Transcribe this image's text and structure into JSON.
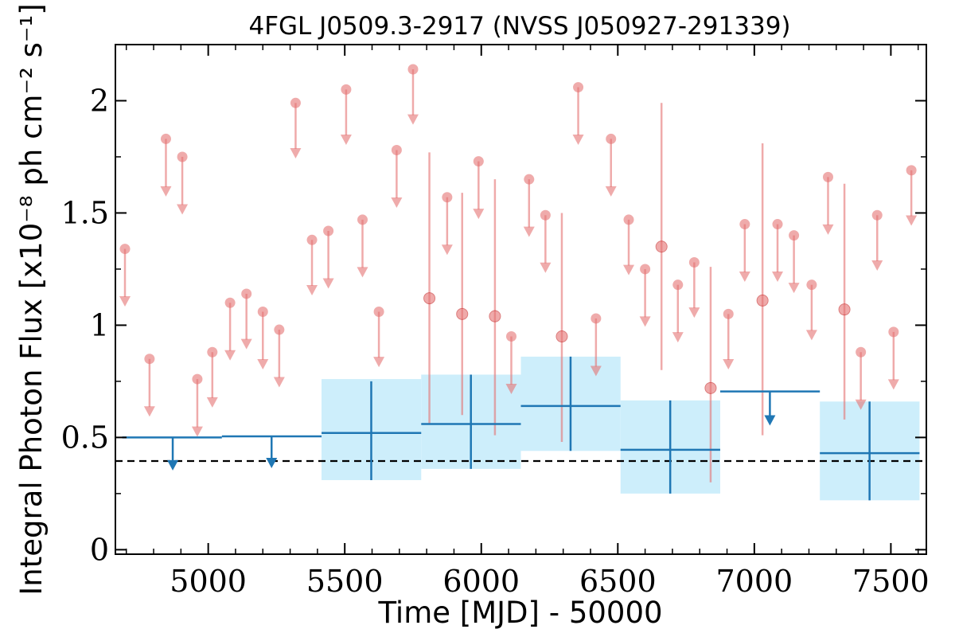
{
  "chart_data": {
    "type": "scatter",
    "title": "4FGL J0509.3-2917 (NVSS J050927-291339)",
    "xlabel": "Time [MJD] - 50000",
    "ylabel": "Integral Photon Flux [x10⁻⁸ ph cm⁻² s⁻¹]",
    "xlim": [
      4660,
      7630
    ],
    "ylim": [
      -0.02,
      2.25
    ],
    "x_ticks": [
      5000,
      5500,
      6000,
      6500,
      7000,
      7500
    ],
    "x_tick_labels": [
      "5000",
      "5500",
      "6000",
      "6500",
      "7000",
      "7500"
    ],
    "y_ticks": [
      0,
      0.5,
      1,
      1.5,
      2
    ],
    "y_tick_labels": [
      "0",
      "0.5",
      "1",
      "1.5",
      "2"
    ],
    "colors": {
      "short_bins": "#e57373",
      "long_bins": "#1f77b4",
      "band_fill": "#cdeefb",
      "reference_line": "#000000"
    },
    "reference_line": {
      "y": 0.395,
      "style": "dashed"
    },
    "series": [
      {
        "bin_days": 30,
        "upper_limits": [
          {
            "x": 4695,
            "y": 1.34,
            "y_tip": 1.09
          },
          {
            "x": 4785,
            "y": 0.85,
            "y_tip": 0.6
          },
          {
            "x": 4845,
            "y": 1.83,
            "y_tip": 1.58
          },
          {
            "x": 4905,
            "y": 1.75,
            "y_tip": 1.5
          },
          {
            "x": 4960,
            "y": 0.76,
            "y_tip": 0.51
          },
          {
            "x": 5015,
            "y": 0.88,
            "y_tip": 0.64
          },
          {
            "x": 5080,
            "y": 1.1,
            "y_tip": 0.85
          },
          {
            "x": 5140,
            "y": 1.14,
            "y_tip": 0.9
          },
          {
            "x": 5200,
            "y": 1.06,
            "y_tip": 0.81
          },
          {
            "x": 5260,
            "y": 0.98,
            "y_tip": 0.73
          },
          {
            "x": 5320,
            "y": 1.99,
            "y_tip": 1.75
          },
          {
            "x": 5380,
            "y": 1.38,
            "y_tip": 1.14
          },
          {
            "x": 5440,
            "y": 1.42,
            "y_tip": 1.17
          },
          {
            "x": 5505,
            "y": 2.05,
            "y_tip": 1.81
          },
          {
            "x": 5565,
            "y": 1.47,
            "y_tip": 1.22
          },
          {
            "x": 5625,
            "y": 1.06,
            "y_tip": 0.82
          },
          {
            "x": 5690,
            "y": 1.78,
            "y_tip": 1.53
          },
          {
            "x": 5750,
            "y": 2.14,
            "y_tip": 1.9
          },
          {
            "x": 5875,
            "y": 1.57,
            "y_tip": 1.32
          },
          {
            "x": 5990,
            "y": 1.73,
            "y_tip": 1.48
          },
          {
            "x": 6110,
            "y": 0.95,
            "y_tip": 0.7
          },
          {
            "x": 6175,
            "y": 1.65,
            "y_tip": 1.4
          },
          {
            "x": 6235,
            "y": 1.49,
            "y_tip": 1.24
          },
          {
            "x": 6355,
            "y": 2.06,
            "y_tip": 1.81
          },
          {
            "x": 6420,
            "y": 1.03,
            "y_tip": 0.78
          },
          {
            "x": 6475,
            "y": 1.83,
            "y_tip": 1.58
          },
          {
            "x": 6540,
            "y": 1.47,
            "y_tip": 1.23
          },
          {
            "x": 6600,
            "y": 1.25,
            "y_tip": 1.0
          },
          {
            "x": 6720,
            "y": 1.18,
            "y_tip": 0.93
          },
          {
            "x": 6780,
            "y": 1.28,
            "y_tip": 1.04
          },
          {
            "x": 6905,
            "y": 1.05,
            "y_tip": 0.81
          },
          {
            "x": 6965,
            "y": 1.45,
            "y_tip": 1.2
          },
          {
            "x": 7085,
            "y": 1.45,
            "y_tip": 1.2
          },
          {
            "x": 7145,
            "y": 1.4,
            "y_tip": 1.15
          },
          {
            "x": 7210,
            "y": 1.18,
            "y_tip": 0.94
          },
          {
            "x": 7270,
            "y": 1.66,
            "y_tip": 1.41
          },
          {
            "x": 7390,
            "y": 0.88,
            "y_tip": 0.63
          },
          {
            "x": 7450,
            "y": 1.49,
            "y_tip": 1.25
          },
          {
            "x": 7510,
            "y": 0.97,
            "y_tip": 0.72
          },
          {
            "x": 7575,
            "y": 1.69,
            "y_tip": 1.45
          }
        ],
        "detections": [
          {
            "x": 5810,
            "y": 1.12,
            "y_low": 0.56,
            "y_high": 1.77
          },
          {
            "x": 5930,
            "y": 1.05,
            "y_low": 0.6,
            "y_high": 1.59
          },
          {
            "x": 6050,
            "y": 1.04,
            "y_low": 0.51,
            "y_high": 1.65
          },
          {
            "x": 6295,
            "y": 0.95,
            "y_low": 0.48,
            "y_high": 1.5
          },
          {
            "x": 6660,
            "y": 1.35,
            "y_low": 0.8,
            "y_high": 1.99
          },
          {
            "x": 6840,
            "y": 0.72,
            "y_low": 0.3,
            "y_high": 1.26
          },
          {
            "x": 7030,
            "y": 1.11,
            "y_low": 0.51,
            "y_high": 1.81
          },
          {
            "x": 7330,
            "y": 1.07,
            "y_low": 0.58,
            "y_high": 1.63
          }
        ]
      },
      {
        "bin_days": 365,
        "upper_limits": [
          {
            "x_start": 4685,
            "x_end": 5050,
            "y": 0.5,
            "x_mark": 4870,
            "y_tip": 0.36
          },
          {
            "x_start": 5050,
            "x_end": 5415,
            "y": 0.505,
            "x_mark": 5232,
            "y_tip": 0.37
          },
          {
            "x_start": 6875,
            "x_end": 7240,
            "y": 0.705,
            "x_mark": 7057,
            "y_tip": 0.56
          }
        ],
        "detections": [
          {
            "x_start": 5415,
            "x_end": 5780,
            "x": 5597,
            "y": 0.52,
            "y_low": 0.31,
            "y_high": 0.75,
            "band_low": 0.31,
            "band_high": 0.76
          },
          {
            "x_start": 5780,
            "x_end": 6145,
            "x": 5962,
            "y": 0.56,
            "y_low": 0.36,
            "y_high": 0.78,
            "band_low": 0.36,
            "band_high": 0.78
          },
          {
            "x_start": 6145,
            "x_end": 6510,
            "x": 6327,
            "y": 0.64,
            "y_low": 0.44,
            "y_high": 0.86,
            "band_low": 0.44,
            "band_high": 0.86
          },
          {
            "x_start": 6510,
            "x_end": 6875,
            "x": 6692,
            "y": 0.445,
            "y_low": 0.25,
            "y_high": 0.665,
            "band_low": 0.25,
            "band_high": 0.665
          },
          {
            "x_start": 7240,
            "x_end": 7605,
            "x": 7422,
            "y": 0.43,
            "y_low": 0.22,
            "y_high": 0.66,
            "band_low": 0.22,
            "band_high": 0.66
          }
        ]
      }
    ]
  }
}
